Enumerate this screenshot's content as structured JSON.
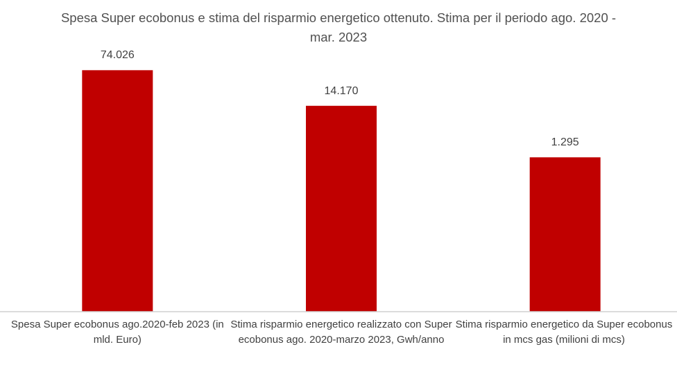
{
  "chart_data": {
    "type": "bar",
    "title": "Spesa Super ecobonus e stima del risparmio energetico ottenuto. Stima per il periodo ago. 2020 - mar. 2023",
    "categories": [
      "Spesa Super ecobonus ago.2020-feb 2023 (in mld. Euro)",
      "Stima risparmio energetico realizzato con Super ecobonus ago. 2020-marzo 2023, Gwh/anno",
      "Stima risparmio energetico da Super ecobonus in mcs gas (milioni di mcs)"
    ],
    "values": [
      74026,
      14170,
      1295
    ],
    "value_labels": [
      "74.026",
      "14.170",
      "1.295"
    ],
    "color": "#c00000",
    "ylim": [
      1,
      100000
    ],
    "log_scale": true,
    "grid": false
  }
}
